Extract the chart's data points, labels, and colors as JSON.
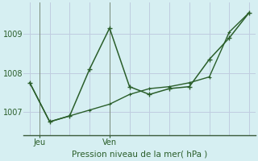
{
  "xlabel": "Pression niveau de la mer( hPa )",
  "bg_color": "#d6eff2",
  "grid_color": "#c0cce0",
  "line_color": "#2a5e2a",
  "ylim": [
    1006.4,
    1009.8
  ],
  "xlim": [
    -0.3,
    11.3
  ],
  "series1_x": [
    0,
    1,
    2,
    3,
    4,
    5,
    6,
    7,
    8,
    9,
    10,
    11
  ],
  "series1_y": [
    1007.75,
    1006.75,
    1006.9,
    1008.1,
    1009.15,
    1007.65,
    1007.45,
    1007.6,
    1007.65,
    1008.35,
    1008.9,
    1009.55
  ],
  "series2_x": [
    0,
    1,
    2,
    3,
    4,
    5,
    6,
    7,
    8,
    9,
    10,
    11
  ],
  "series2_y": [
    1007.75,
    1006.75,
    1006.9,
    1007.05,
    1007.2,
    1007.45,
    1007.6,
    1007.65,
    1007.75,
    1007.9,
    1009.05,
    1009.55
  ],
  "yticks": [
    1007,
    1008,
    1009
  ],
  "xtick_pos": [
    0.5,
    4.0
  ],
  "xtick_labels": [
    "Jeu",
    "Ven"
  ],
  "vline_x": [
    0.5,
    4.0
  ],
  "grid_xticks": [
    0,
    1,
    2,
    3,
    4,
    5,
    6,
    7,
    8,
    9,
    10,
    11
  ]
}
